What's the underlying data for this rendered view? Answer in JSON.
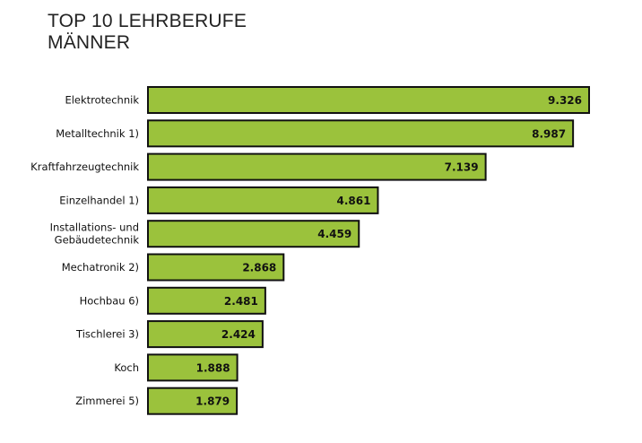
{
  "chart_data": {
    "type": "bar",
    "orientation": "horizontal",
    "title": "TOP 10 LEHRBERUFE MÄNNER",
    "title_lines": [
      "TOP 10 LEHRBERUFE",
      "MÄNNER"
    ],
    "categories": [
      [
        "Elektrotechnik"
      ],
      [
        "Metalltechnik 1)"
      ],
      [
        "Kraftfahrzeugtechnik"
      ],
      [
        "Einzelhandel 1)"
      ],
      [
        "Installations- und",
        "Gebäudetechnik"
      ],
      [
        "Mechatronik 2)"
      ],
      [
        "Hochbau 6)"
      ],
      [
        "Tischlerei 3)"
      ],
      [
        "Koch"
      ],
      [
        "Zimmerei 5)"
      ]
    ],
    "values": [
      9326,
      8987,
      7139,
      4861,
      4459,
      2868,
      2481,
      2424,
      1888,
      1879
    ],
    "value_labels": [
      "9.326",
      "8.987",
      "7.139",
      "4.861",
      "4.459",
      "2.868",
      "2.481",
      "2.424",
      "1.888",
      "1.879"
    ],
    "xlim": [
      0,
      9326
    ],
    "grid": false,
    "bar_color": "#9bc23c",
    "bar_border_color": "#111111"
  }
}
